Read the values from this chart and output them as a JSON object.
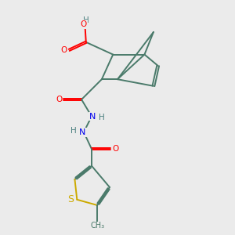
{
  "background_color": "#ebebeb",
  "atom_colors": {
    "C": "#4a7a6a",
    "O": "#ff0000",
    "N": "#0000ee",
    "S": "#ccaa00",
    "H": "#4a8080"
  },
  "bond_color": "#4a7a6a",
  "figsize": [
    3.0,
    3.0
  ],
  "dpi": 100
}
